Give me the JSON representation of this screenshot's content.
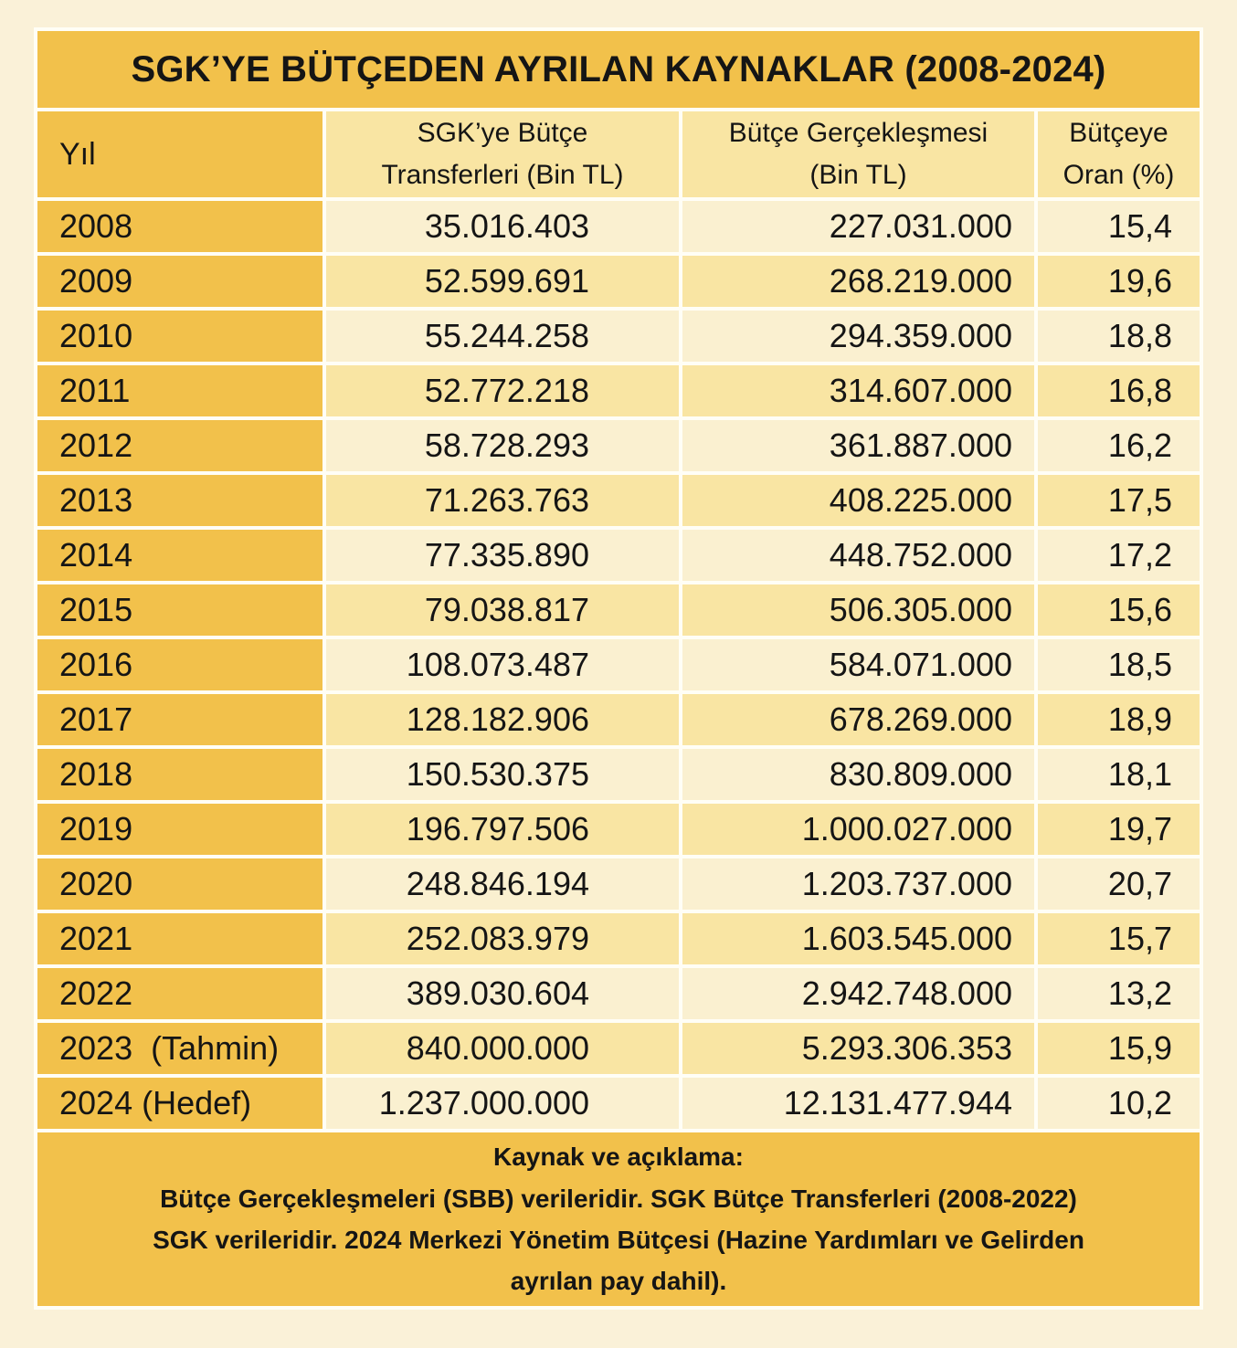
{
  "title": "SGK’YE BÜTÇEDEN AYRILAN KAYNAKLAR (2008-2024)",
  "table": {
    "headers": {
      "year": "Yıl",
      "transfers": "SGK’ye Bütçe\nTransferleri (Bin TL)",
      "realization": "Bütçe Gerçekleşmesi\n(Bin TL)",
      "ratio": "Bütçeye\nOran (%)"
    }
  },
  "footer": {
    "note": "Kaynak ve açıklama:\nBütçe Gerçekleşmeleri (SBB) verileridir. SGK Bütçe Transferleri (2008-2022)\nSGK verileridir. 2024 Merkezi Yönetim Bütçesi (Hazine Yardımları ve Gelirden\nayrılan pay dahil)."
  },
  "colors": {
    "gold": "#F2C14B",
    "row_light": "#FAF0D0",
    "row_dark": "#F9E5A3",
    "grid_line": "#FFFEF6",
    "page_background": "#FAF1D8",
    "text": "#151515"
  },
  "chart_data": {
    "type": "table",
    "title": "SGK’YE BÜTÇEDEN AYRILAN KAYNAKLAR (2008-2024)",
    "columns": [
      "Yıl",
      "SGK’ye Bütçe Transferleri (Bin TL)",
      "Bütçe Gerçekleşmesi (Bin TL)",
      "Bütçeye Oran (%)"
    ],
    "rows": [
      [
        "2008",
        "35.016.403",
        "227.031.000",
        "15,4"
      ],
      [
        "2009",
        "52.599.691",
        "268.219.000",
        "19,6"
      ],
      [
        "2010",
        "55.244.258",
        "294.359.000",
        "18,8"
      ],
      [
        "2011",
        "52.772.218",
        "314.607.000",
        "16,8"
      ],
      [
        "2012",
        "58.728.293",
        "361.887.000",
        "16,2"
      ],
      [
        "2013",
        "71.263.763",
        "408.225.000",
        "17,5"
      ],
      [
        "2014",
        "77.335.890",
        "448.752.000",
        "17,2"
      ],
      [
        "2015",
        "79.038.817",
        "506.305.000",
        "15,6"
      ],
      [
        "2016",
        "108.073.487",
        "584.071.000",
        "18,5"
      ],
      [
        "2017",
        "128.182.906",
        "678.269.000",
        "18,9"
      ],
      [
        "2018",
        "150.530.375",
        "830.809.000",
        "18,1"
      ],
      [
        "2019",
        "196.797.506",
        "1.000.027.000",
        "19,7"
      ],
      [
        "2020",
        "248.846.194",
        "1.203.737.000",
        "20,7"
      ],
      [
        "2021",
        "252.083.979",
        "1.603.545.000",
        "15,7"
      ],
      [
        "2022",
        "389.030.604",
        "2.942.748.000",
        "13,2"
      ],
      [
        "2023  (Tahmin)",
        "840.000.000",
        "5.293.306.353",
        "15,9"
      ],
      [
        "2024 (Hedef)",
        "1.237.000.000",
        "12.131.477.944",
        "10,2"
      ]
    ],
    "numeric": {
      "years": [
        2008,
        2009,
        2010,
        2011,
        2012,
        2013,
        2014,
        2015,
        2016,
        2017,
        2018,
        2019,
        2020,
        2021,
        2022,
        2023,
        2024
      ],
      "transfers_bin_tl": [
        35016403,
        52599691,
        55244258,
        52772218,
        58728293,
        71263763,
        77335890,
        79038817,
        108073487,
        128182906,
        150530375,
        196797506,
        248846194,
        252083979,
        389030604,
        840000000,
        1237000000
      ],
      "budget_realization_bin_tl": [
        227031000,
        268219000,
        294359000,
        314607000,
        361887000,
        408225000,
        448752000,
        506305000,
        584071000,
        678269000,
        830809000,
        1000027000,
        1203737000,
        1603545000,
        2942748000,
        5293306353,
        12131477944
      ],
      "ratio_percent": [
        15.4,
        19.6,
        18.8,
        16.8,
        16.2,
        17.5,
        17.2,
        15.6,
        18.5,
        18.9,
        18.1,
        19.7,
        20.7,
        15.7,
        13.2,
        15.9,
        10.2
      ]
    },
    "notes": "2023 values are estimates (Tahmin); 2024 values are targets (Hedef)."
  }
}
